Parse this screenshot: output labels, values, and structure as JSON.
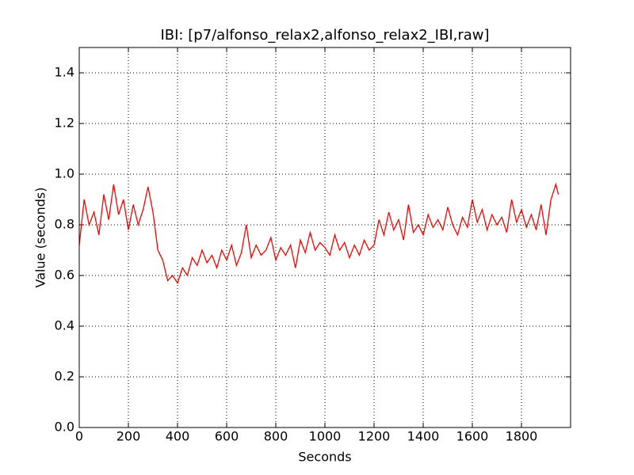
{
  "chart_data": {
    "type": "line",
    "title": "IBI: [p7/alfonso_relax2,alfonso_relax2_IBI,raw]",
    "xlabel": "Seconds",
    "ylabel": "Value (seconds)",
    "xlim": [
      0,
      2000
    ],
    "ylim": [
      0,
      1.5
    ],
    "xticks": [
      0,
      200,
      400,
      600,
      800,
      1000,
      1200,
      1400,
      1600,
      1800
    ],
    "yticks": [
      {
        "value": 0,
        "label": "0.0"
      },
      0.2,
      0.4,
      0.6,
      0.8,
      {
        "value": 1,
        "label": "1.0"
      },
      1.2,
      1.4
    ],
    "grid": true,
    "series": [
      {
        "name": "IBI",
        "color": "#ff0000",
        "x": [
          0,
          20,
          40,
          60,
          80,
          100,
          120,
          140,
          160,
          180,
          200,
          220,
          240,
          260,
          280,
          300,
          320,
          340,
          360,
          380,
          400,
          420,
          440,
          460,
          480,
          500,
          520,
          540,
          560,
          580,
          600,
          620,
          640,
          660,
          680,
          700,
          720,
          740,
          760,
          780,
          800,
          820,
          840,
          860,
          880,
          900,
          920,
          940,
          960,
          980,
          1000,
          1020,
          1040,
          1060,
          1080,
          1100,
          1120,
          1140,
          1160,
          1180,
          1200,
          1220,
          1240,
          1260,
          1280,
          1300,
          1320,
          1340,
          1360,
          1380,
          1400,
          1420,
          1440,
          1460,
          1480,
          1500,
          1520,
          1540,
          1560,
          1580,
          1600,
          1620,
          1640,
          1660,
          1680,
          1700,
          1720,
          1740,
          1760,
          1780,
          1800,
          1820,
          1840,
          1860,
          1880,
          1900,
          1920,
          1940,
          1950
        ],
        "values": [
          0.72,
          0.9,
          0.8,
          0.85,
          0.76,
          0.92,
          0.82,
          0.96,
          0.84,
          0.9,
          0.78,
          0.88,
          0.8,
          0.86,
          0.95,
          0.85,
          0.7,
          0.66,
          0.58,
          0.6,
          0.57,
          0.63,
          0.6,
          0.67,
          0.64,
          0.7,
          0.65,
          0.68,
          0.63,
          0.7,
          0.66,
          0.72,
          0.64,
          0.69,
          0.8,
          0.67,
          0.72,
          0.68,
          0.7,
          0.75,
          0.66,
          0.71,
          0.68,
          0.72,
          0.63,
          0.74,
          0.69,
          0.77,
          0.7,
          0.73,
          0.71,
          0.68,
          0.76,
          0.7,
          0.73,
          0.67,
          0.72,
          0.68,
          0.74,
          0.7,
          0.72,
          0.82,
          0.76,
          0.85,
          0.78,
          0.82,
          0.74,
          0.88,
          0.77,
          0.8,
          0.76,
          0.84,
          0.79,
          0.82,
          0.78,
          0.87,
          0.8,
          0.76,
          0.83,
          0.79,
          0.9,
          0.81,
          0.86,
          0.78,
          0.84,
          0.8,
          0.83,
          0.77,
          0.9,
          0.81,
          0.86,
          0.79,
          0.84,
          0.78,
          0.88,
          0.76,
          0.9,
          0.96,
          0.92
        ]
      }
    ]
  }
}
